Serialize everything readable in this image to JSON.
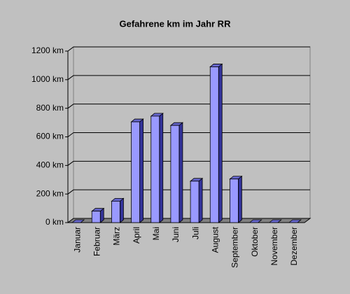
{
  "chart_data": {
    "type": "bar3d",
    "title": "Gefahrene km im Jahr RR",
    "categories": [
      "Januar",
      "Februar",
      "März",
      "April",
      "Mai",
      "Juni",
      "Juli",
      "August",
      "September",
      "Oktober",
      "November",
      "Dezember"
    ],
    "values": [
      0,
      80,
      150,
      705,
      745,
      680,
      290,
      1090,
      305,
      0,
      0,
      0
    ],
    "color": "#9999ff",
    "ylim": [
      0,
      1200
    ],
    "yticks": [
      {
        "value": 0,
        "label": "0 km"
      },
      {
        "value": 200,
        "label": "200 km"
      },
      {
        "value": 400,
        "label": "400 km"
      },
      {
        "value": 600,
        "label": "600 km"
      },
      {
        "value": 800,
        "label": "800 km"
      },
      {
        "value": 1000,
        "label": "1000 km"
      },
      {
        "value": 1200,
        "label": "1200 km"
      }
    ],
    "grid": true
  }
}
